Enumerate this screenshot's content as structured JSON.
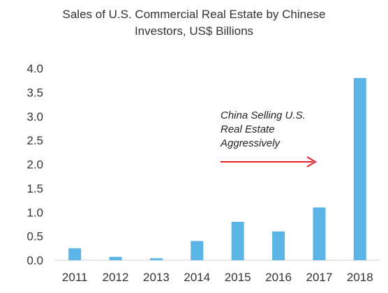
{
  "chart_data": {
    "type": "bar",
    "title": "Sales of U.S. Commercial Real Estate by Chinese Investors, US$ Billions",
    "title_lines": [
      "Sales of U.S. Commercial Real Estate by Chinese",
      "Investors, US$ Billions"
    ],
    "xlabel": "",
    "ylabel": "",
    "categories": [
      "2011",
      "2012",
      "2013",
      "2014",
      "2015",
      "2016",
      "2017",
      "2018"
    ],
    "values": [
      0.25,
      0.07,
      0.04,
      0.4,
      0.8,
      0.6,
      1.1,
      3.8
    ],
    "ylim": [
      0,
      4.0
    ],
    "y_ticks": [
      "0.0",
      "0.5",
      "1.0",
      "1.5",
      "2.0",
      "2.5",
      "3.0",
      "3.5",
      "4.0"
    ],
    "grid": false,
    "legend": "none",
    "bar_color": "#5ab4e5",
    "annotation": {
      "lines": [
        "China Selling U.S.",
        "Real Estate",
        "Aggressively"
      ],
      "arrow_color": "#e8202a"
    }
  }
}
